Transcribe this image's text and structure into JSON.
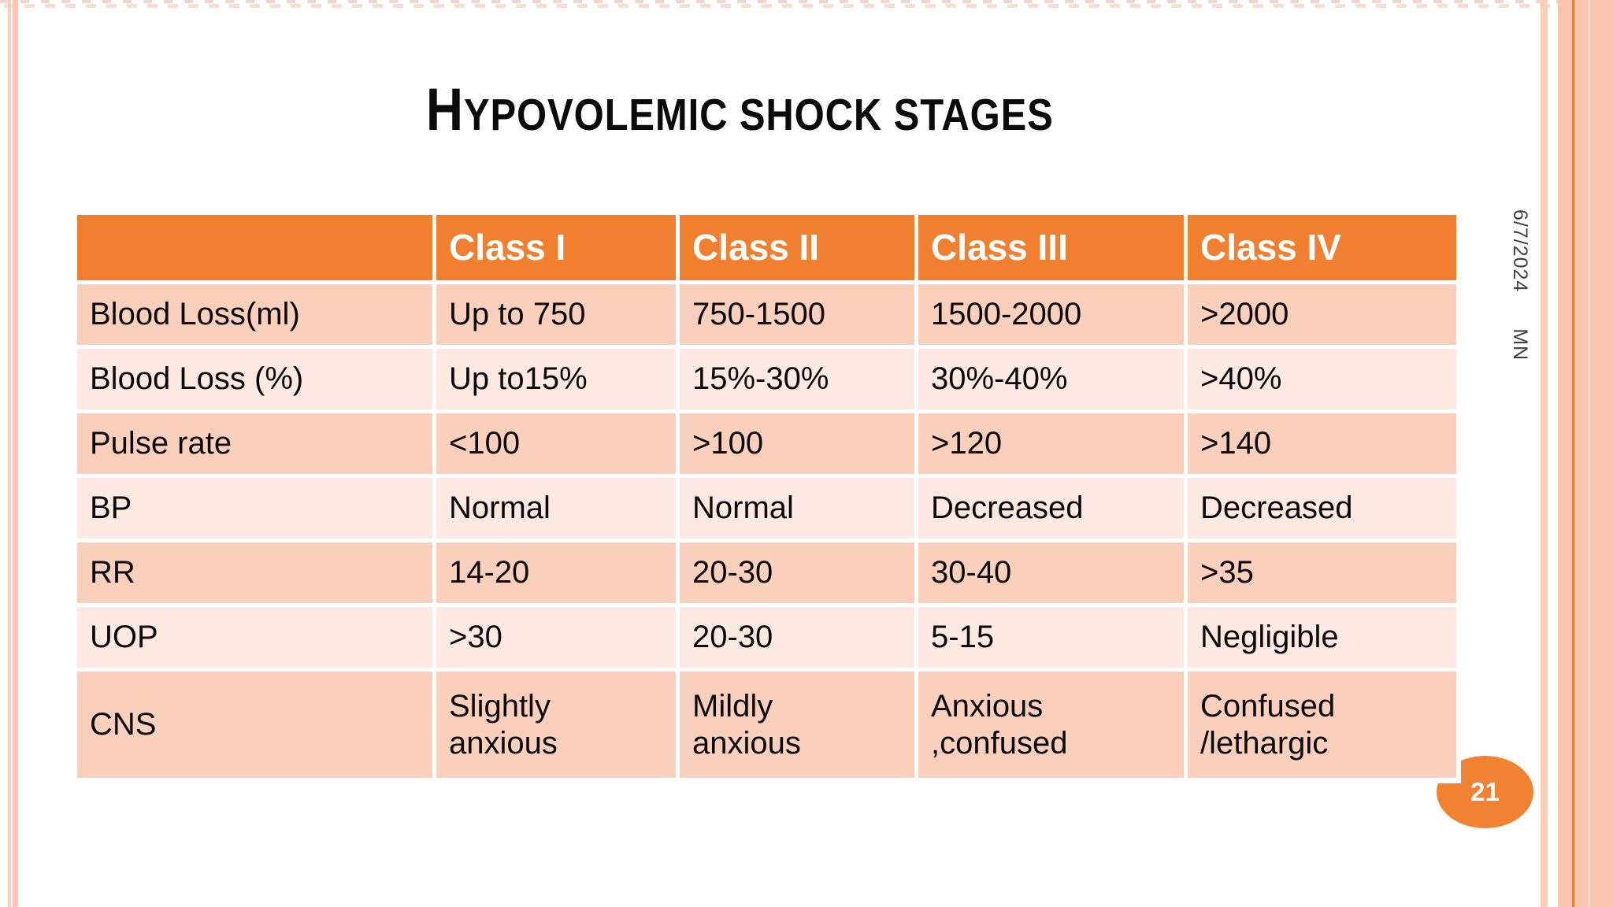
{
  "slide": {
    "title": {
      "lead": "H",
      "rest": "YPOVOLEMIC SHOCK STAGES"
    },
    "page_number": "21",
    "side_meta": {
      "date": "6/7/2024",
      "initials": "MN"
    }
  },
  "table": {
    "header": [
      "",
      "Class I",
      "Class II",
      "Class III",
      "Class IV"
    ],
    "rows": [
      {
        "label": "Blood Loss(ml)",
        "values": [
          "Up to 750",
          "750-1500",
          "1500-2000",
          ">2000"
        ]
      },
      {
        "label": "Blood Loss (%)",
        "values": [
          "Up to15%",
          "15%-30%",
          "30%-40%",
          ">40%"
        ]
      },
      {
        "label": "Pulse rate",
        "values": [
          "<100",
          ">100",
          ">120",
          ">140"
        ]
      },
      {
        "label": "BP",
        "values": [
          "Normal",
          "Normal",
          "Decreased",
          "Decreased"
        ]
      },
      {
        "label": "RR",
        "values": [
          "14-20",
          "20-30",
          "30-40",
          ">35"
        ]
      },
      {
        "label": "UOP",
        "values": [
          ">30",
          "20-30",
          "5-15",
          "Negligible"
        ]
      },
      {
        "label": "CNS",
        "values": [
          "Slightly\nanxious",
          "Mildly\nanxious",
          "Anxious\n,confused",
          "Confused\n/lethargic"
        ]
      }
    ]
  },
  "colors": {
    "header_orange": "#f0802f",
    "row_dark": "#fad0bc",
    "row_light": "#fde9e1",
    "stripe_peach": "#f9c5af",
    "stripe_line_orange": "#ed7d31",
    "badge_orange": "#f08232",
    "side_text_gray": "#3f3f46"
  }
}
